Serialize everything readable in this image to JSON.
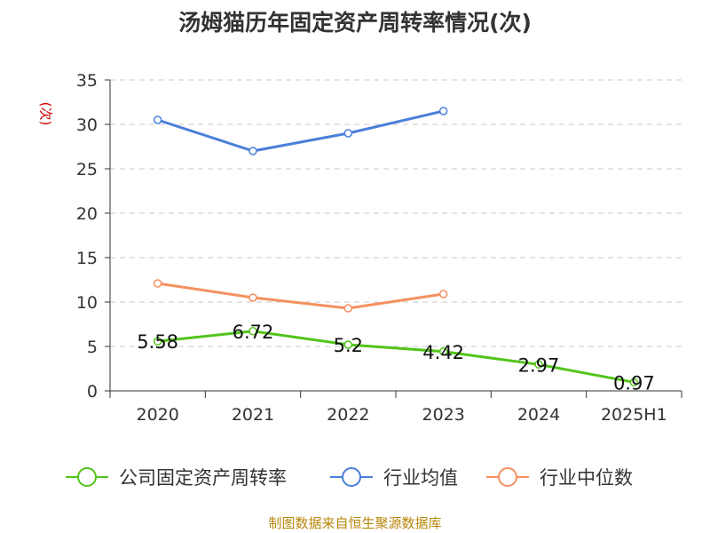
{
  "title": "汤姆猫历年固定资产周转率情况(次)",
  "source_note": "制图数据来自恒生聚源数据库",
  "chart_data": {
    "type": "line",
    "title": "汤姆猫历年固定资产周转率情况(次)",
    "ylabel": "(次)",
    "xlabel": "",
    "categories": [
      "2020",
      "2021",
      "2022",
      "2023",
      "2024",
      "2025H1"
    ],
    "ylim": [
      0,
      35
    ],
    "yticks": [
      0,
      5,
      10,
      15,
      20,
      25,
      30,
      35
    ],
    "grid": "horizontal-dashed",
    "legend": "bottom",
    "series": [
      {
        "name": "公司固定资产周转率",
        "color": "#52c41a",
        "values": [
          5.58,
          6.72,
          5.2,
          4.42,
          2.97,
          0.97
        ],
        "labels": [
          "5.58",
          "6.72",
          "5.2",
          "4.42",
          "2.97",
          "0.97"
        ]
      },
      {
        "name": "行业均值",
        "color": "#4a7fd9",
        "values": [
          30.5,
          27.0,
          29.0,
          31.5,
          null,
          null
        ]
      },
      {
        "name": "行业中位数",
        "color": "#f5905e",
        "values": [
          12.1,
          10.5,
          9.3,
          10.9,
          null,
          null
        ]
      }
    ]
  }
}
